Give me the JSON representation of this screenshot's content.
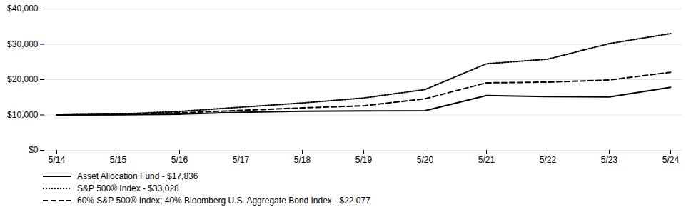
{
  "chart_data": {
    "type": "line",
    "categories": [
      "5/14",
      "5/15",
      "5/16",
      "5/17",
      "5/18",
      "5/19",
      "5/20",
      "5/21",
      "5/22",
      "5/23",
      "5/24"
    ],
    "series": [
      {
        "name": "Asset Allocation Fund - $17,836",
        "color": "#000000",
        "line_style": "solid",
        "values": [
          10000,
          10050,
          10220,
          10750,
          11050,
          11150,
          11200,
          15500,
          15200,
          15100,
          17836
        ]
      },
      {
        "name": "S&P 500® Index - $33,028",
        "color": "#000000",
        "line_style": "dotted",
        "values": [
          10000,
          10250,
          11000,
          12200,
          13400,
          14800,
          17200,
          24500,
          25800,
          30200,
          33028
        ]
      },
      {
        "name": "60% S&P 500® Index; 40% Bloomberg U.S. Aggregate Bond Index - $22,077",
        "color": "#000000",
        "line_style": "dashed",
        "values": [
          10000,
          10120,
          10600,
          11300,
          12000,
          12600,
          14600,
          19100,
          19300,
          19900,
          22077
        ]
      }
    ],
    "ylim": [
      0,
      40000
    ],
    "yticks": [
      {
        "value": 0,
        "label": "$0"
      },
      {
        "value": 10000,
        "label": "$10,000"
      },
      {
        "value": 20000,
        "label": "$20,000"
      },
      {
        "value": 30000,
        "label": "$30,000"
      },
      {
        "value": 40000,
        "label": "$40,000"
      }
    ],
    "grid": true,
    "legend": "lower left"
  }
}
